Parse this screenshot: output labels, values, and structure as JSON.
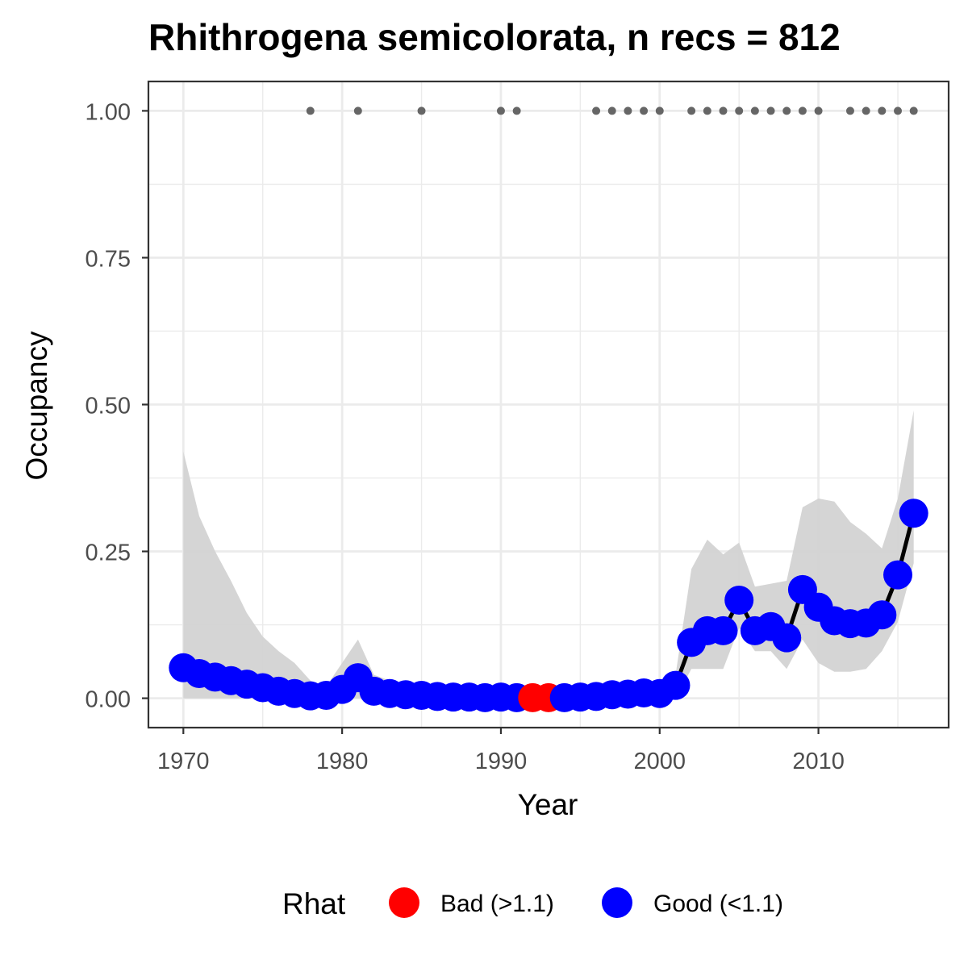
{
  "chart_data": {
    "type": "line",
    "title": "Rhithrogena semicolorata, n recs = 812",
    "xlabel": "Year",
    "ylabel": "Occupancy",
    "xlim": [
      1967.8,
      2018.2
    ],
    "ylim": [
      -0.05,
      1.05
    ],
    "x_ticks": [
      1970,
      1980,
      1990,
      2000,
      2010
    ],
    "x_tick_labels": [
      "1970",
      "1980",
      "1990",
      "2000",
      "2010"
    ],
    "y_ticks": [
      0,
      0.25,
      0.5,
      0.75,
      1
    ],
    "y_tick_labels": [
      "0.00",
      "0.25",
      "0.50",
      "0.75",
      "1.00"
    ],
    "grid": true,
    "colors": {
      "bad": "#ff0000",
      "good": "#0000ff",
      "line": "#000000",
      "ribbon": "#d3d3d3",
      "record": "#666666",
      "grid": "#ebebeb",
      "panel_border": "#333333"
    },
    "legend": {
      "title": "Rhat",
      "position": "bottom",
      "entries": [
        {
          "label": "Bad (>1.1)",
          "color": "#ff0000"
        },
        {
          "label": "Good (<1.1)",
          "color": "#0000ff"
        }
      ]
    },
    "series": [
      {
        "x": [
          1970,
          1971,
          1972,
          1973,
          1974,
          1975,
          1976,
          1977,
          1978,
          1979,
          1980,
          1981,
          1982,
          1983,
          1984,
          1985,
          1986,
          1987,
          1988,
          1989,
          1990,
          1991,
          1992,
          1993,
          1994,
          1995,
          1996,
          1997,
          1998,
          1999,
          2000,
          2001,
          2002,
          2003,
          2004,
          2005,
          2006,
          2007,
          2008,
          2009,
          2010,
          2011,
          2012,
          2013,
          2014,
          2015,
          2016
        ],
        "y": [
          0.052,
          0.042,
          0.036,
          0.03,
          0.024,
          0.018,
          0.012,
          0.008,
          0.004,
          0.005,
          0.015,
          0.035,
          0.012,
          0.008,
          0.006,
          0.005,
          0.003,
          0.002,
          0.002,
          0.001,
          0.002,
          0.001,
          0.001,
          0.001,
          0.001,
          0.002,
          0.003,
          0.006,
          0.007,
          0.009,
          0.008,
          0.022,
          0.095,
          0.115,
          0.115,
          0.167,
          0.115,
          0.122,
          0.103,
          0.185,
          0.155,
          0.132,
          0.127,
          0.128,
          0.142,
          0.21,
          0.315
        ],
        "lower": [
          0.0,
          0.0,
          0.0,
          0.0,
          0.0,
          0.0,
          0.0,
          0.0,
          0.0,
          0.0,
          0.0,
          0.0,
          0.0,
          0.0,
          0.0,
          0.0,
          0.0,
          0.0,
          0.0,
          0.0,
          0.0,
          0.0,
          0.0,
          0.0,
          0.0,
          0.0,
          0.0,
          0.0,
          0.0,
          0.0,
          0.0,
          0.0,
          0.05,
          0.05,
          0.05,
          0.12,
          0.08,
          0.08,
          0.05,
          0.1,
          0.06,
          0.045,
          0.045,
          0.05,
          0.08,
          0.13,
          0.23
        ],
        "upper": [
          0.42,
          0.31,
          0.25,
          0.2,
          0.145,
          0.105,
          0.08,
          0.06,
          0.03,
          0.02,
          0.06,
          0.1,
          0.04,
          0.03,
          0.02,
          0.015,
          0.01,
          0.01,
          0.01,
          0.008,
          0.01,
          0.008,
          0.008,
          0.008,
          0.008,
          0.01,
          0.012,
          0.02,
          0.02,
          0.025,
          0.03,
          0.04,
          0.22,
          0.27,
          0.245,
          0.265,
          0.19,
          0.195,
          0.2,
          0.325,
          0.34,
          0.335,
          0.3,
          0.28,
          0.255,
          0.34,
          0.49
        ],
        "rhat": [
          "good",
          "good",
          "good",
          "good",
          "good",
          "good",
          "good",
          "good",
          "good",
          "good",
          "good",
          "good",
          "good",
          "good",
          "good",
          "good",
          "good",
          "good",
          "good",
          "good",
          "good",
          "good",
          "bad",
          "bad",
          "good",
          "good",
          "good",
          "good",
          "good",
          "good",
          "good",
          "good",
          "good",
          "good",
          "good",
          "good",
          "good",
          "good",
          "good",
          "good",
          "good",
          "good",
          "good",
          "good",
          "good",
          "good",
          "good"
        ]
      }
    ],
    "records": {
      "y": 1,
      "x": [
        1978,
        1981,
        1985,
        1990,
        1991,
        1996,
        1997,
        1998,
        1999,
        2000,
        2002,
        2003,
        2004,
        2005,
        2006,
        2007,
        2008,
        2009,
        2010,
        2012,
        2013,
        2014,
        2015,
        2016
      ]
    }
  }
}
